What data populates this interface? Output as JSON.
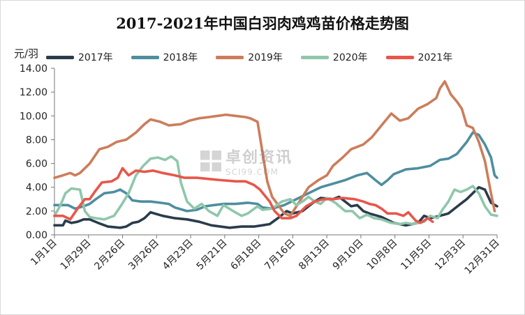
{
  "title": "2017-2021年中国白羽肉鸡鸡苗价格走势图",
  "watermark": {
    "cn": "卓创资讯",
    "en": "SCI99.COM"
  },
  "chart_data": {
    "type": "line",
    "title": "2017-2021年中国白羽肉鸡鸡苗价格走势图",
    "ylabel": "元/羽",
    "xlabel": "",
    "ylim": [
      0,
      14
    ],
    "yticks": [
      "0.00",
      "2.00",
      "4.00",
      "6.00",
      "8.00",
      "10.00",
      "12.00",
      "14.00"
    ],
    "xticks": [
      "1月1日",
      "1月29日",
      "2月26日",
      "3月26日",
      "4月23日",
      "5月21日",
      "6月18日",
      "7月16日",
      "8月13日",
      "9月10日",
      "10月8日",
      "11月5日",
      "12月3日",
      "12月31日"
    ],
    "legend_position": "top",
    "grid": false,
    "x_unit": "day_of_year",
    "series": [
      {
        "name": "2017年",
        "color": "#2a3c4c",
        "points": [
          [
            1,
            0.8
          ],
          [
            8,
            0.8
          ],
          [
            10,
            1.2
          ],
          [
            15,
            1.0
          ],
          [
            20,
            1.1
          ],
          [
            25,
            1.3
          ],
          [
            30,
            1.3
          ],
          [
            37,
            1.0
          ],
          [
            45,
            0.7
          ],
          [
            55,
            0.6
          ],
          [
            60,
            0.7
          ],
          [
            65,
            1.0
          ],
          [
            70,
            1.1
          ],
          [
            75,
            1.4
          ],
          [
            80,
            1.9
          ],
          [
            90,
            1.6
          ],
          [
            100,
            1.4
          ],
          [
            110,
            1.3
          ],
          [
            120,
            1.1
          ],
          [
            130,
            0.8
          ],
          [
            145,
            0.6
          ],
          [
            155,
            0.7
          ],
          [
            165,
            0.7
          ],
          [
            172,
            0.8
          ],
          [
            178,
            0.9
          ],
          [
            182,
            1.2
          ],
          [
            186,
            1.5
          ],
          [
            192,
            2.0
          ],
          [
            197,
            1.8
          ],
          [
            205,
            2.0
          ],
          [
            210,
            2.4
          ],
          [
            215,
            2.8
          ],
          [
            220,
            3.1
          ],
          [
            230,
            3.0
          ],
          [
            235,
            3.2
          ],
          [
            240,
            2.8
          ],
          [
            245,
            2.4
          ],
          [
            250,
            2.5
          ],
          [
            255,
            2.0
          ],
          [
            260,
            1.8
          ],
          [
            270,
            1.5
          ],
          [
            280,
            1.0
          ],
          [
            290,
            0.8
          ],
          [
            300,
            1.0
          ],
          [
            305,
            1.6
          ],
          [
            310,
            1.4
          ],
          [
            318,
            1.6
          ],
          [
            325,
            1.8
          ],
          [
            330,
            2.2
          ],
          [
            335,
            2.6
          ],
          [
            340,
            3.0
          ],
          [
            345,
            3.5
          ],
          [
            350,
            4.0
          ],
          [
            355,
            3.8
          ],
          [
            360,
            2.7
          ],
          [
            365,
            2.4
          ]
        ]
      },
      {
        "name": "2018年",
        "color": "#4e8ea0",
        "points": [
          [
            1,
            2.5
          ],
          [
            12,
            2.5
          ],
          [
            18,
            2.2
          ],
          [
            25,
            2.4
          ],
          [
            30,
            2.6
          ],
          [
            35,
            3.0
          ],
          [
            42,
            3.5
          ],
          [
            50,
            3.6
          ],
          [
            55,
            3.8
          ],
          [
            60,
            3.5
          ],
          [
            65,
            2.9
          ],
          [
            72,
            2.8
          ],
          [
            80,
            2.8
          ],
          [
            88,
            2.7
          ],
          [
            95,
            2.6
          ],
          [
            100,
            2.3
          ],
          [
            110,
            2.0
          ],
          [
            118,
            2.1
          ],
          [
            125,
            2.4
          ],
          [
            132,
            2.5
          ],
          [
            140,
            2.6
          ],
          [
            150,
            2.6
          ],
          [
            160,
            2.7
          ],
          [
            168,
            2.6
          ],
          [
            172,
            2.3
          ],
          [
            180,
            2.2
          ],
          [
            190,
            2.5
          ],
          [
            200,
            3.0
          ],
          [
            210,
            3.5
          ],
          [
            220,
            4.0
          ],
          [
            230,
            4.3
          ],
          [
            240,
            4.6
          ],
          [
            250,
            5.0
          ],
          [
            258,
            5.2
          ],
          [
            265,
            4.6
          ],
          [
            270,
            4.2
          ],
          [
            275,
            4.6
          ],
          [
            280,
            5.1
          ],
          [
            290,
            5.5
          ],
          [
            300,
            5.6
          ],
          [
            310,
            5.8
          ],
          [
            318,
            6.3
          ],
          [
            325,
            6.4
          ],
          [
            332,
            6.8
          ],
          [
            340,
            7.8
          ],
          [
            345,
            8.6
          ],
          [
            350,
            8.4
          ],
          [
            355,
            7.6
          ],
          [
            360,
            6.5
          ],
          [
            363,
            5.0
          ],
          [
            365,
            4.8
          ]
        ]
      },
      {
        "name": "2019年",
        "color": "#cc7d5b",
        "points": [
          [
            1,
            4.8
          ],
          [
            8,
            5.0
          ],
          [
            14,
            5.2
          ],
          [
            18,
            5.0
          ],
          [
            22,
            5.2
          ],
          [
            30,
            6.0
          ],
          [
            38,
            7.2
          ],
          [
            45,
            7.4
          ],
          [
            52,
            7.8
          ],
          [
            60,
            8.0
          ],
          [
            68,
            8.6
          ],
          [
            75,
            9.3
          ],
          [
            80,
            9.7
          ],
          [
            88,
            9.5
          ],
          [
            95,
            9.2
          ],
          [
            105,
            9.3
          ],
          [
            112,
            9.6
          ],
          [
            120,
            9.8
          ],
          [
            128,
            9.9
          ],
          [
            135,
            10.0
          ],
          [
            142,
            10.1
          ],
          [
            150,
            10.0
          ],
          [
            158,
            9.9
          ],
          [
            162,
            9.8
          ],
          [
            168,
            9.5
          ],
          [
            172,
            7.0
          ],
          [
            176,
            4.5
          ],
          [
            180,
            3.2
          ],
          [
            185,
            2.5
          ],
          [
            190,
            1.8
          ],
          [
            195,
            1.6
          ],
          [
            200,
            2.4
          ],
          [
            205,
            3.2
          ],
          [
            210,
            4.0
          ],
          [
            218,
            4.6
          ],
          [
            225,
            5.0
          ],
          [
            230,
            5.8
          ],
          [
            238,
            6.5
          ],
          [
            245,
            7.2
          ],
          [
            255,
            7.6
          ],
          [
            262,
            8.2
          ],
          [
            270,
            9.2
          ],
          [
            278,
            10.2
          ],
          [
            285,
            9.6
          ],
          [
            292,
            9.8
          ],
          [
            300,
            10.6
          ],
          [
            308,
            11.0
          ],
          [
            315,
            11.5
          ],
          [
            318,
            12.3
          ],
          [
            322,
            12.9
          ],
          [
            327,
            11.8
          ],
          [
            332,
            11.2
          ],
          [
            336,
            10.6
          ],
          [
            340,
            9.2
          ],
          [
            345,
            9.0
          ],
          [
            350,
            7.8
          ],
          [
            355,
            6.2
          ],
          [
            360,
            3.5
          ],
          [
            363,
            2.0
          ]
        ]
      },
      {
        "name": "2020年",
        "color": "#8fc7ab",
        "points": [
          [
            1,
            1.6
          ],
          [
            6,
            2.5
          ],
          [
            10,
            3.5
          ],
          [
            15,
            3.9
          ],
          [
            22,
            3.8
          ],
          [
            26,
            2.0
          ],
          [
            30,
            1.5
          ],
          [
            35,
            1.4
          ],
          [
            42,
            1.3
          ],
          [
            50,
            1.6
          ],
          [
            56,
            2.5
          ],
          [
            62,
            3.5
          ],
          [
            68,
            5.0
          ],
          [
            74,
            5.8
          ],
          [
            80,
            6.4
          ],
          [
            86,
            6.5
          ],
          [
            92,
            6.3
          ],
          [
            97,
            6.6
          ],
          [
            102,
            6.2
          ],
          [
            105,
            4.4
          ],
          [
            110,
            2.8
          ],
          [
            116,
            2.2
          ],
          [
            122,
            2.6
          ],
          [
            128,
            2.0
          ],
          [
            135,
            1.6
          ],
          [
            140,
            2.5
          ],
          [
            148,
            2.0
          ],
          [
            155,
            1.6
          ],
          [
            160,
            1.8
          ],
          [
            168,
            2.4
          ],
          [
            172,
            2.1
          ],
          [
            180,
            2.2
          ],
          [
            188,
            2.8
          ],
          [
            195,
            3.0
          ],
          [
            200,
            2.5
          ],
          [
            205,
            2.8
          ],
          [
            210,
            3.2
          ],
          [
            215,
            2.8
          ],
          [
            220,
            2.6
          ],
          [
            225,
            3.1
          ],
          [
            232,
            2.7
          ],
          [
            240,
            2.0
          ],
          [
            246,
            2.0
          ],
          [
            252,
            1.4
          ],
          [
            258,
            1.7
          ],
          [
            264,
            1.4
          ],
          [
            270,
            1.3
          ],
          [
            278,
            1.0
          ],
          [
            285,
            0.9
          ],
          [
            290,
            1.0
          ],
          [
            296,
            0.9
          ],
          [
            300,
            1.0
          ],
          [
            305,
            1.1
          ],
          [
            310,
            1.6
          ],
          [
            316,
            1.4
          ],
          [
            320,
            2.1
          ],
          [
            325,
            2.8
          ],
          [
            330,
            3.8
          ],
          [
            335,
            3.6
          ],
          [
            340,
            3.8
          ],
          [
            345,
            4.1
          ],
          [
            350,
            3.5
          ],
          [
            355,
            2.4
          ],
          [
            360,
            1.7
          ],
          [
            365,
            1.6
          ]
        ]
      },
      {
        "name": "2021年",
        "color": "#e8564a",
        "points": [
          [
            1,
            1.6
          ],
          [
            8,
            1.6
          ],
          [
            14,
            1.3
          ],
          [
            20,
            2.2
          ],
          [
            26,
            3.0
          ],
          [
            30,
            3.0
          ],
          [
            34,
            3.6
          ],
          [
            40,
            4.4
          ],
          [
            48,
            4.5
          ],
          [
            53,
            4.8
          ],
          [
            57,
            5.6
          ],
          [
            62,
            5.0
          ],
          [
            68,
            5.4
          ],
          [
            75,
            5.3
          ],
          [
            82,
            5.4
          ],
          [
            90,
            5.2
          ],
          [
            100,
            5.0
          ],
          [
            108,
            4.8
          ],
          [
            118,
            4.8
          ],
          [
            128,
            4.7
          ],
          [
            138,
            4.6
          ],
          [
            150,
            4.5
          ],
          [
            158,
            4.5
          ],
          [
            165,
            4.2
          ],
          [
            170,
            3.8
          ],
          [
            178,
            2.8
          ],
          [
            182,
            2.0
          ],
          [
            188,
            1.4
          ],
          [
            195,
            1.4
          ],
          [
            200,
            1.6
          ],
          [
            208,
            2.4
          ],
          [
            215,
            2.8
          ],
          [
            222,
            3.0
          ],
          [
            230,
            3.0
          ],
          [
            238,
            3.1
          ],
          [
            248,
            3.0
          ],
          [
            255,
            2.8
          ],
          [
            260,
            2.6
          ],
          [
            265,
            2.5
          ],
          [
            270,
            2.2
          ],
          [
            275,
            1.8
          ],
          [
            282,
            1.8
          ],
          [
            288,
            1.6
          ],
          [
            292,
            1.9
          ],
          [
            298,
            1.2
          ],
          [
            302,
            1.0
          ],
          [
            308,
            1.4
          ],
          [
            312,
            1.1
          ]
        ]
      }
    ]
  }
}
